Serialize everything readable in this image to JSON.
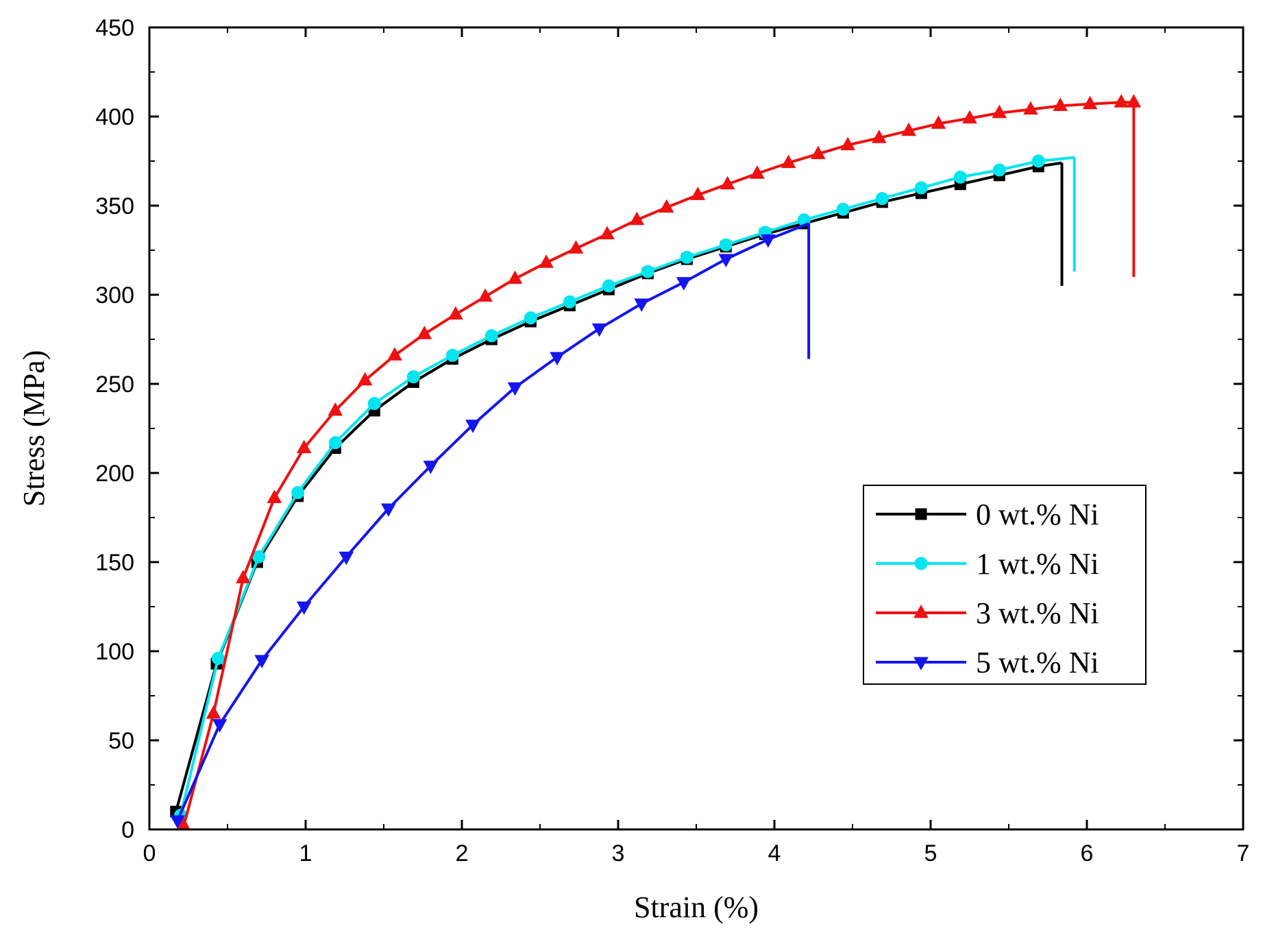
{
  "chart_data": {
    "type": "line",
    "title": "",
    "xlabel": "Strain (%)",
    "ylabel": "Stress (MPa)",
    "xlim": [
      0,
      7
    ],
    "ylim": [
      0,
      450
    ],
    "x_ticks": [
      "0",
      "1",
      "2",
      "3",
      "4",
      "5",
      "6",
      "7"
    ],
    "y_ticks": [
      "0",
      "50",
      "100",
      "150",
      "200",
      "250",
      "300",
      "350",
      "400",
      "450"
    ],
    "grid": false,
    "legend_position": "center-right",
    "series": [
      {
        "name": "0 wt.% Ni",
        "color": "#000000",
        "marker": "square",
        "x": [
          0.17,
          0.43,
          0.69,
          0.95,
          1.19,
          1.44,
          1.69,
          1.94,
          2.19,
          2.44,
          2.69,
          2.94,
          3.19,
          3.44,
          3.69,
          3.94,
          4.19,
          4.44,
          4.69,
          4.94,
          5.19,
          5.44,
          5.69,
          5.84
        ],
        "values": [
          10,
          93,
          150,
          187,
          214,
          235,
          251,
          264,
          275,
          285,
          294,
          303,
          312,
          320,
          327,
          334,
          340,
          346,
          352,
          357,
          362,
          367,
          372,
          374
        ],
        "fracture": [
          5.84,
          305
        ]
      },
      {
        "name": "1 wt.% Ni",
        "color": "#00E5EE",
        "marker": "circle",
        "x": [
          0.2,
          0.44,
          0.7,
          0.95,
          1.19,
          1.44,
          1.69,
          1.94,
          2.19,
          2.44,
          2.69,
          2.94,
          3.19,
          3.44,
          3.69,
          3.94,
          4.19,
          4.44,
          4.69,
          4.94,
          5.19,
          5.44,
          5.69,
          5.92
        ],
        "values": [
          8,
          96,
          153,
          189,
          217,
          239,
          254,
          266,
          277,
          287,
          296,
          305,
          313,
          321,
          328,
          335,
          342,
          348,
          354,
          360,
          366,
          370,
          375,
          377
        ],
        "fracture": [
          5.92,
          313
        ]
      },
      {
        "name": "3 wt.% Ni",
        "color": "#EE1111",
        "marker": "triangle-up",
        "x": [
          0.22,
          0.41,
          0.6,
          0.8,
          0.99,
          1.19,
          1.38,
          1.57,
          1.76,
          1.96,
          2.15,
          2.34,
          2.54,
          2.73,
          2.93,
          3.12,
          3.31,
          3.51,
          3.7,
          3.89,
          4.09,
          4.28,
          4.47,
          4.67,
          4.86,
          5.05,
          5.25,
          5.44,
          5.64,
          5.83,
          6.02,
          6.22,
          6.3
        ],
        "values": [
          2,
          65,
          141,
          186,
          214,
          235,
          252,
          266,
          278,
          289,
          299,
          309,
          318,
          326,
          334,
          342,
          349,
          356,
          362,
          368,
          374,
          379,
          384,
          388,
          392,
          396,
          399,
          402,
          404,
          406,
          407,
          408,
          408
        ],
        "fracture": [
          6.3,
          310
        ]
      },
      {
        "name": "5 wt.% Ni",
        "color": "#1515EE",
        "marker": "triangle-down",
        "x": [
          0.18,
          0.45,
          0.72,
          0.99,
          1.26,
          1.53,
          1.8,
          2.07,
          2.34,
          2.61,
          2.88,
          3.15,
          3.42,
          3.69,
          3.96,
          4.22
        ],
        "values": [
          5,
          59,
          95,
          125,
          153,
          180,
          204,
          227,
          248,
          265,
          281,
          295,
          307,
          320,
          331,
          340
        ],
        "fracture": [
          4.22,
          264
        ]
      }
    ]
  }
}
